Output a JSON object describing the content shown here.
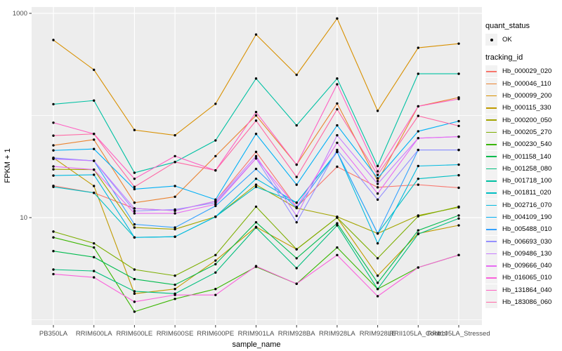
{
  "style": {
    "panel_bg": "#EDEDED",
    "grid_color": "#FFFFFF",
    "tick_color": "#333333",
    "tick_label_color": "#4D4D4D",
    "axis_title_color": "#000000",
    "point_color": "#000000",
    "legend_key_bg": "#F2F2F2"
  },
  "legend": {
    "quant_status_title": "quant_status",
    "quant_status_items": [
      {
        "label": "OK",
        "marker": "point"
      }
    ],
    "tracking_title": "tracking_id"
  },
  "chart_data": {
    "type": "line",
    "title": "",
    "xlabel": "sample_name",
    "ylabel": "FPKM + 1",
    "y_scale": "log10",
    "y_ticks": [
      1000,
      10
    ],
    "y_minor_gridlines": [
      100,
      1
    ],
    "ylim": [
      0.85,
      1200
    ],
    "grid": true,
    "legend_position": "right",
    "categories": [
      "PB350LA",
      "RRIM600LA",
      "RRIM600LE",
      "RRIM600SE",
      "RRIM600PE",
      "RRIM901LA",
      "RRIM928BA",
      "RRIM928LA",
      "RRIM928LE",
      "RRII105LA_Control",
      "RRII105LA_Stressed"
    ],
    "series": [
      {
        "name": "Hb_000029_020",
        "color": "#F8766D",
        "values": [
          20.5,
          17.5,
          12.3,
          11.7,
          14.5,
          44,
          12.7,
          31.5,
          19.8,
          21,
          19.6
        ]
      },
      {
        "name": "Hb_000046_110",
        "color": "#EA8331",
        "values": [
          51,
          58,
          14,
          16,
          40,
          100,
          33,
          131,
          22.8,
          123,
          150
        ]
      },
      {
        "name": "Hb_000099_200",
        "color": "#D89000",
        "values": [
          548,
          280,
          72,
          64,
          130,
          620,
          250,
          890,
          111,
          460,
          505
        ]
      },
      {
        "name": "Hb_000115_330",
        "color": "#C09B00",
        "values": [
          38.5,
          20.4,
          1.8,
          2.0,
          3.8,
          8.1,
          4.9,
          10.0,
          2.7,
          7.0,
          8.4
        ]
      },
      {
        "name": "Hb_000200_050",
        "color": "#A3A500",
        "values": [
          29.7,
          29.5,
          8.0,
          7.7,
          10.2,
          21,
          12.4,
          10.2,
          7.0,
          10.5,
          12.6
        ]
      },
      {
        "name": "Hb_000205_270",
        "color": "#7CAE00",
        "values": [
          7.3,
          5.6,
          3.1,
          2.7,
          4.3,
          12.8,
          4.9,
          10.0,
          4.0,
          10.3,
          12.8
        ]
      },
      {
        "name": "Hb_000230_540",
        "color": "#39B600",
        "values": [
          6.4,
          5.1,
          1.2,
          1.6,
          2.0,
          3.3,
          2.25,
          5.1,
          2.0,
          3.25,
          4.3
        ]
      },
      {
        "name": "Hb_001158_140",
        "color": "#00BB4E",
        "values": [
          4.7,
          4.1,
          2.5,
          2.2,
          3.5,
          9.0,
          4.0,
          8.8,
          2.3,
          7.5,
          10.5
        ]
      },
      {
        "name": "Hb_001258_080",
        "color": "#00BF7D",
        "values": [
          3.1,
          3.0,
          1.9,
          1.8,
          2.9,
          8.0,
          3.2,
          8.4,
          2.0,
          6.9,
          9.8
        ]
      },
      {
        "name": "Hb_001718_100",
        "color": "#00C1A3",
        "values": [
          129,
          140,
          27.5,
          35,
          57,
          230,
          80,
          230,
          32,
          256,
          256
        ]
      },
      {
        "name": "Hb_001811_020",
        "color": "#00BFC4",
        "values": [
          20,
          17.5,
          6.4,
          6.5,
          10.2,
          20,
          14,
          44,
          7.0,
          24,
          26
        ]
      },
      {
        "name": "Hb_002716_070",
        "color": "#00BAE0",
        "values": [
          25.8,
          26.3,
          6.4,
          6.5,
          10.2,
          24,
          14,
          44,
          5.6,
          32,
          33
        ]
      },
      {
        "name": "Hb_004109_190",
        "color": "#00B0F6",
        "values": [
          45.5,
          47,
          19,
          20.4,
          15,
          66,
          21,
          80,
          24.3,
          70,
          88
        ]
      },
      {
        "name": "Hb_005488_010",
        "color": "#35A2FF",
        "values": [
          38,
          36,
          8.6,
          8.0,
          13,
          30,
          12.4,
          44,
          7.0,
          46,
          46
        ]
      },
      {
        "name": "Hb_006693_030",
        "color": "#9590FF",
        "values": [
          38.5,
          36,
          11.6,
          12,
          14,
          38,
          9,
          46,
          15,
          46,
          46
        ]
      },
      {
        "name": "Hb_009486_130",
        "color": "#C77CFF",
        "values": [
          37.5,
          36,
          12.3,
          11.7,
          14.5,
          40,
          10.4,
          64,
          21.4,
          60,
          62
        ]
      },
      {
        "name": "Hb_009666_040",
        "color": "#E76BF3",
        "values": [
          31.7,
          29.5,
          11,
          11,
          13.5,
          38,
          12.7,
          54,
          17.2,
          60,
          62
        ]
      },
      {
        "name": "Hb_016065_010",
        "color": "#FA62DB",
        "values": [
          2.8,
          2.6,
          1.5,
          1.75,
          1.75,
          3.35,
          2.25,
          4.3,
          1.7,
          3.25,
          4.3
        ]
      },
      {
        "name": "Hb_131864_040",
        "color": "#FF61C3",
        "values": [
          85,
          66,
          24,
          40,
          29,
          108,
          33,
          202,
          28.4,
          123,
          145
        ]
      },
      {
        "name": "Hb_183086_060",
        "color": "#FF67A4",
        "values": [
          63.5,
          66,
          20,
          35,
          29,
          89,
          25,
          115,
          26.2,
          99,
          79
        ]
      }
    ]
  }
}
